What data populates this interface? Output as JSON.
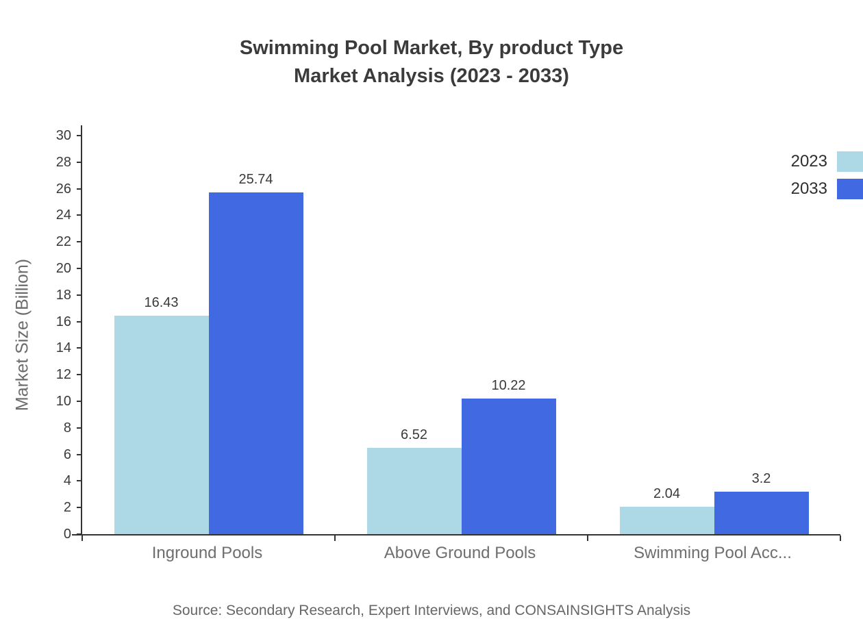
{
  "title": {
    "line1": "Swimming Pool Market, By product Type",
    "line2": "Market Analysis (2023 - 2033)"
  },
  "ylabel": "Market Size (Billion)",
  "source": "Source: Secondary Research, Expert Interviews, and CONSAINSIGHTS Analysis",
  "colors": {
    "series_2023": "#add8e6",
    "series_2033": "#4169e1",
    "axis": "#333333",
    "text": "#3b3b3b"
  },
  "chart_data": {
    "type": "bar",
    "title": "Swimming Pool Market, By product Type Market Analysis (2023 - 2033)",
    "categories": [
      "Inground Pools",
      "Above Ground Pools",
      "Swimming Pool Acc..."
    ],
    "series": [
      {
        "name": "2023",
        "color": "#add8e6",
        "values": [
          16.43,
          6.52,
          2.04
        ]
      },
      {
        "name": "2033",
        "color": "#4169e1",
        "values": [
          25.74,
          10.22,
          3.2
        ]
      }
    ],
    "xlabel": "",
    "ylabel": "Market Size (Billion)",
    "ylim": [
      0,
      30
    ],
    "ytick_step": 2,
    "grid": false,
    "legend_position": "top-right",
    "value_labels": true
  }
}
